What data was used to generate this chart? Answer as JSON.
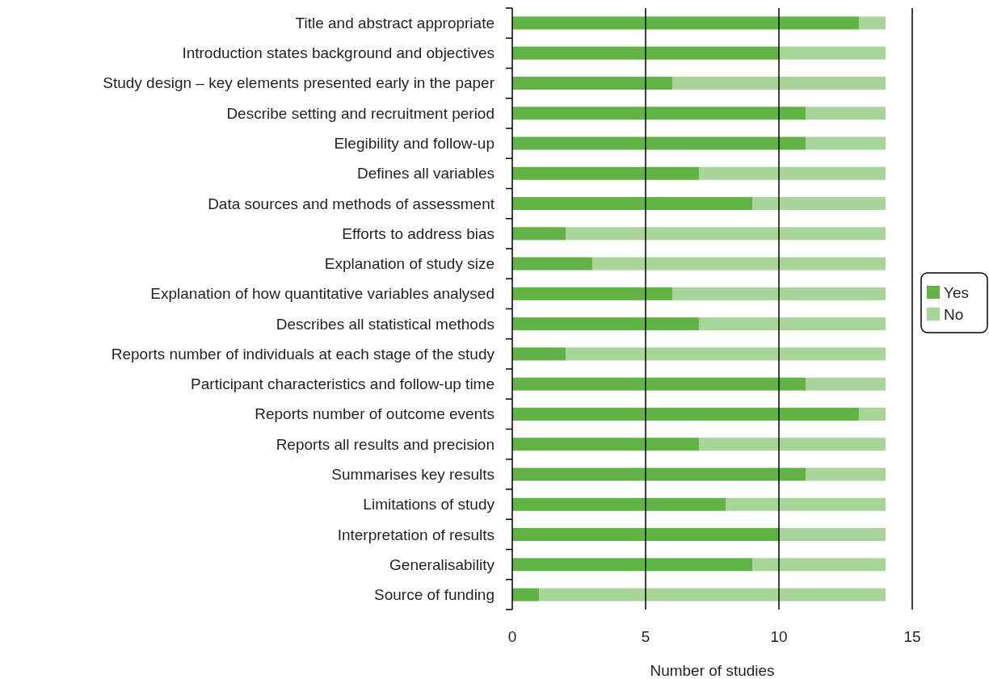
{
  "chart_data": {
    "type": "bar",
    "orientation": "horizontal",
    "stacked": true,
    "categories": [
      "Title and abstract appropriate",
      "Introduction states background and objectives",
      "Study design – key elements presented early in the paper",
      "Describe setting and recruitment period",
      "Elegibility and follow-up",
      "Defines all variables",
      "Data sources and methods of assessment",
      "Efforts to address bias",
      "Explanation of study size",
      "Explanation of how quantitative variables analysed",
      "Describes all statistical methods",
      "Reports number of individuals at each stage of the study",
      "Participant characteristics and follow-up time",
      "Reports number of outcome events",
      "Reports all results and precision",
      "Summarises key results",
      "Limitations of study",
      "Interpretation of results",
      "Generalisability",
      "Source of funding"
    ],
    "series": [
      {
        "name": "Yes",
        "color": "#62b346",
        "values": [
          13,
          10,
          6,
          11,
          11,
          7,
          9,
          2,
          3,
          6,
          7,
          2,
          11,
          13,
          7,
          11,
          8,
          10,
          9,
          1
        ]
      },
      {
        "name": "No",
        "color": "#a9d49a",
        "values": [
          1,
          4,
          8,
          3,
          3,
          7,
          5,
          12,
          11,
          8,
          7,
          12,
          3,
          1,
          7,
          3,
          6,
          4,
          5,
          13
        ]
      }
    ],
    "xlim": [
      0,
      15
    ],
    "xticks": [
      0,
      5,
      10,
      15
    ],
    "xlabel": "Number of studies",
    "grid": "x",
    "legend": "right"
  }
}
